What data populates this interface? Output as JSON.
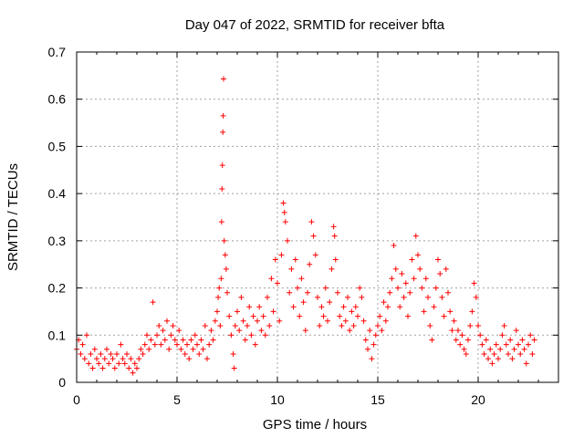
{
  "chart_data": {
    "type": "scatter",
    "title": "Day 047 of 2022, SRMTID for receiver bfta",
    "xlabel": "GPS time / hours",
    "ylabel": "SRMTID / TECUs",
    "xlim": [
      0,
      24
    ],
    "ylim": [
      0,
      0.7
    ],
    "xticks": [
      0,
      5,
      10,
      15,
      20
    ],
    "yticks": [
      0,
      0.1,
      0.2,
      0.3,
      0.4,
      0.5,
      0.6,
      0.7
    ],
    "xtick_labels": [
      "0",
      "5",
      "10",
      "15",
      "20"
    ],
    "ytick_labels": [
      "0",
      "0.1",
      "0.2",
      "0.3",
      "0.4",
      "0.5",
      "0.6",
      "0.7"
    ],
    "grid": true,
    "legend": "none",
    "marker": "+",
    "color": "#ff0000",
    "series": [
      {
        "name": "bfta",
        "points": [
          [
            0.0,
            0.07
          ],
          [
            0.1,
            0.09
          ],
          [
            0.2,
            0.06
          ],
          [
            0.3,
            0.08
          ],
          [
            0.4,
            0.05
          ],
          [
            0.5,
            0.1
          ],
          [
            0.6,
            0.04
          ],
          [
            0.7,
            0.06
          ],
          [
            0.8,
            0.03
          ],
          [
            0.9,
            0.07
          ],
          [
            1.0,
            0.05
          ],
          [
            1.1,
            0.04
          ],
          [
            1.2,
            0.06
          ],
          [
            1.3,
            0.03
          ],
          [
            1.4,
            0.05
          ],
          [
            1.5,
            0.07
          ],
          [
            1.6,
            0.04
          ],
          [
            1.7,
            0.06
          ],
          [
            1.8,
            0.05
          ],
          [
            1.9,
            0.03
          ],
          [
            2.0,
            0.06
          ],
          [
            2.1,
            0.04
          ],
          [
            2.2,
            0.08
          ],
          [
            2.3,
            0.05
          ],
          [
            2.4,
            0.04
          ],
          [
            2.5,
            0.06
          ],
          [
            2.6,
            0.03
          ],
          [
            2.7,
            0.05
          ],
          [
            2.8,
            0.02
          ],
          [
            2.9,
            0.04
          ],
          [
            3.0,
            0.03
          ],
          [
            3.1,
            0.05
          ],
          [
            3.2,
            0.07
          ],
          [
            3.3,
            0.06
          ],
          [
            3.4,
            0.08
          ],
          [
            3.5,
            0.1
          ],
          [
            3.6,
            0.07
          ],
          [
            3.7,
            0.09
          ],
          [
            3.8,
            0.17
          ],
          [
            3.9,
            0.08
          ],
          [
            4.0,
            0.1
          ],
          [
            4.1,
            0.12
          ],
          [
            4.2,
            0.08
          ],
          [
            4.3,
            0.11
          ],
          [
            4.4,
            0.09
          ],
          [
            4.5,
            0.13
          ],
          [
            4.6,
            0.07
          ],
          [
            4.7,
            0.1
          ],
          [
            4.8,
            0.12
          ],
          [
            4.9,
            0.09
          ],
          [
            5.0,
            0.08
          ],
          [
            5.1,
            0.11
          ],
          [
            5.2,
            0.07
          ],
          [
            5.3,
            0.09
          ],
          [
            5.4,
            0.06
          ],
          [
            5.5,
            0.08
          ],
          [
            5.6,
            0.05
          ],
          [
            5.7,
            0.09
          ],
          [
            5.8,
            0.07
          ],
          [
            5.9,
            0.1
          ],
          [
            6.0,
            0.08
          ],
          [
            6.1,
            0.06
          ],
          [
            6.2,
            0.09
          ],
          [
            6.3,
            0.07
          ],
          [
            6.4,
            0.12
          ],
          [
            6.5,
            0.05
          ],
          [
            6.6,
            0.08
          ],
          [
            6.7,
            0.11
          ],
          [
            6.8,
            0.09
          ],
          [
            6.9,
            0.13
          ],
          [
            7.0,
            0.15
          ],
          [
            7.05,
            0.18
          ],
          [
            7.1,
            0.2
          ],
          [
            7.15,
            0.12
          ],
          [
            7.2,
            0.22
          ],
          [
            7.22,
            0.34
          ],
          [
            7.24,
            0.41
          ],
          [
            7.26,
            0.46
          ],
          [
            7.28,
            0.53
          ],
          [
            7.3,
            0.565
          ],
          [
            7.32,
            0.643
          ],
          [
            7.35,
            0.3
          ],
          [
            7.4,
            0.27
          ],
          [
            7.45,
            0.24
          ],
          [
            7.5,
            0.19
          ],
          [
            7.6,
            0.14
          ],
          [
            7.7,
            0.1
          ],
          [
            7.8,
            0.06
          ],
          [
            7.85,
            0.03
          ],
          [
            7.9,
            0.12
          ],
          [
            8.0,
            0.15
          ],
          [
            8.1,
            0.11
          ],
          [
            8.2,
            0.18
          ],
          [
            8.3,
            0.13
          ],
          [
            8.4,
            0.09
          ],
          [
            8.5,
            0.12
          ],
          [
            8.6,
            0.16
          ],
          [
            8.7,
            0.1
          ],
          [
            8.8,
            0.14
          ],
          [
            8.9,
            0.08
          ],
          [
            9.0,
            0.13
          ],
          [
            9.1,
            0.16
          ],
          [
            9.2,
            0.11
          ],
          [
            9.3,
            0.14
          ],
          [
            9.4,
            0.1
          ],
          [
            9.5,
            0.18
          ],
          [
            9.6,
            0.12
          ],
          [
            9.7,
            0.22
          ],
          [
            9.8,
            0.15
          ],
          [
            9.9,
            0.26
          ],
          [
            10.0,
            0.21
          ],
          [
            10.1,
            0.13
          ],
          [
            10.2,
            0.27
          ],
          [
            10.3,
            0.38
          ],
          [
            10.35,
            0.36
          ],
          [
            10.4,
            0.34
          ],
          [
            10.5,
            0.3
          ],
          [
            10.6,
            0.19
          ],
          [
            10.7,
            0.24
          ],
          [
            10.8,
            0.16
          ],
          [
            10.9,
            0.26
          ],
          [
            11.0,
            0.2
          ],
          [
            11.1,
            0.14
          ],
          [
            11.2,
            0.22
          ],
          [
            11.3,
            0.17
          ],
          [
            11.4,
            0.11
          ],
          [
            11.5,
            0.19
          ],
          [
            11.6,
            0.25
          ],
          [
            11.7,
            0.34
          ],
          [
            11.8,
            0.31
          ],
          [
            11.9,
            0.27
          ],
          [
            12.0,
            0.18
          ],
          [
            12.1,
            0.12
          ],
          [
            12.2,
            0.16
          ],
          [
            12.3,
            0.14
          ],
          [
            12.4,
            0.2
          ],
          [
            12.5,
            0.13
          ],
          [
            12.6,
            0.17
          ],
          [
            12.7,
            0.24
          ],
          [
            12.8,
            0.33
          ],
          [
            12.85,
            0.31
          ],
          [
            12.9,
            0.26
          ],
          [
            13.0,
            0.19
          ],
          [
            13.1,
            0.14
          ],
          [
            13.2,
            0.12
          ],
          [
            13.3,
            0.16
          ],
          [
            13.4,
            0.13
          ],
          [
            13.5,
            0.18
          ],
          [
            13.6,
            0.11
          ],
          [
            13.7,
            0.15
          ],
          [
            13.8,
            0.12
          ],
          [
            13.9,
            0.16
          ],
          [
            14.0,
            0.14
          ],
          [
            14.1,
            0.2
          ],
          [
            14.2,
            0.18
          ],
          [
            14.3,
            0.13
          ],
          [
            14.4,
            0.09
          ],
          [
            14.5,
            0.07
          ],
          [
            14.6,
            0.11
          ],
          [
            14.7,
            0.05
          ],
          [
            14.8,
            0.08
          ],
          [
            14.9,
            0.1
          ],
          [
            15.0,
            0.12
          ],
          [
            15.1,
            0.14
          ],
          [
            15.2,
            0.11
          ],
          [
            15.3,
            0.17
          ],
          [
            15.4,
            0.13
          ],
          [
            15.5,
            0.16
          ],
          [
            15.6,
            0.19
          ],
          [
            15.7,
            0.22
          ],
          [
            15.8,
            0.29
          ],
          [
            15.9,
            0.24
          ],
          [
            16.0,
            0.2
          ],
          [
            16.1,
            0.16
          ],
          [
            16.2,
            0.23
          ],
          [
            16.3,
            0.18
          ],
          [
            16.4,
            0.21
          ],
          [
            16.5,
            0.14
          ],
          [
            16.6,
            0.19
          ],
          [
            16.7,
            0.26
          ],
          [
            16.8,
            0.22
          ],
          [
            16.9,
            0.31
          ],
          [
            17.0,
            0.27
          ],
          [
            17.1,
            0.24
          ],
          [
            17.2,
            0.2
          ],
          [
            17.3,
            0.15
          ],
          [
            17.4,
            0.22
          ],
          [
            17.5,
            0.18
          ],
          [
            17.6,
            0.12
          ],
          [
            17.7,
            0.09
          ],
          [
            17.8,
            0.16
          ],
          [
            17.9,
            0.2
          ],
          [
            18.0,
            0.26
          ],
          [
            18.1,
            0.23
          ],
          [
            18.2,
            0.18
          ],
          [
            18.3,
            0.14
          ],
          [
            18.4,
            0.24
          ],
          [
            18.5,
            0.19
          ],
          [
            18.6,
            0.15
          ],
          [
            18.7,
            0.11
          ],
          [
            18.8,
            0.13
          ],
          [
            18.9,
            0.09
          ],
          [
            19.0,
            0.11
          ],
          [
            19.1,
            0.08
          ],
          [
            19.2,
            0.1
          ],
          [
            19.3,
            0.07
          ],
          [
            19.4,
            0.06
          ],
          [
            19.5,
            0.09
          ],
          [
            19.6,
            0.12
          ],
          [
            19.7,
            0.15
          ],
          [
            19.8,
            0.21
          ],
          [
            19.9,
            0.18
          ],
          [
            20.0,
            0.12
          ],
          [
            20.1,
            0.1
          ],
          [
            20.2,
            0.08
          ],
          [
            20.3,
            0.06
          ],
          [
            20.4,
            0.09
          ],
          [
            20.5,
            0.05
          ],
          [
            20.6,
            0.07
          ],
          [
            20.7,
            0.04
          ],
          [
            20.8,
            0.06
          ],
          [
            20.9,
            0.08
          ],
          [
            21.0,
            0.05
          ],
          [
            21.1,
            0.07
          ],
          [
            21.2,
            0.1
          ],
          [
            21.3,
            0.12
          ],
          [
            21.4,
            0.08
          ],
          [
            21.5,
            0.06
          ],
          [
            21.6,
            0.09
          ],
          [
            21.7,
            0.05
          ],
          [
            21.8,
            0.07
          ],
          [
            21.9,
            0.11
          ],
          [
            22.0,
            0.08
          ],
          [
            22.1,
            0.06
          ],
          [
            22.2,
            0.09
          ],
          [
            22.3,
            0.07
          ],
          [
            22.4,
            0.04
          ],
          [
            22.5,
            0.08
          ],
          [
            22.6,
            0.1
          ],
          [
            22.7,
            0.06
          ],
          [
            22.8,
            0.09
          ]
        ]
      }
    ]
  }
}
